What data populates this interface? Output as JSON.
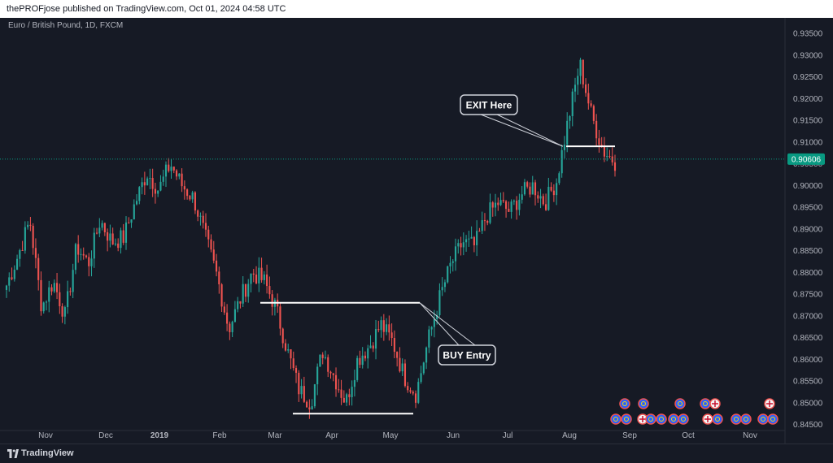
{
  "header": {
    "publisher_text": "thePROFjose published on TradingView.com, Oct 01, 2024 04:58 UTC"
  },
  "footer": {
    "brand": "TradingView"
  },
  "colors": {
    "background": "#161a25",
    "up": "#26a69a",
    "down": "#ef5350",
    "text": "#b2b5be",
    "price_badge": "#089981",
    "line": "#ffffff"
  },
  "chart_data": {
    "type": "candlestick",
    "symbol_label": "Euro / British Pound, 1D, FXCM",
    "last_price": "0.90606",
    "ylim": [
      0.8425,
      0.9365
    ],
    "y_ticks": [
      "0.93500",
      "0.93000",
      "0.92500",
      "0.92000",
      "0.91500",
      "0.91000",
      "0.90500",
      "0.90000",
      "0.89500",
      "0.89000",
      "0.88500",
      "0.88000",
      "0.87500",
      "0.87000",
      "0.86500",
      "0.86000",
      "0.85500",
      "0.85000",
      "0.84500"
    ],
    "x_ticks": [
      "Nov",
      "Dec",
      "2019",
      "Feb",
      "Mar",
      "Apr",
      "May",
      "Jun",
      "Jul",
      "Aug",
      "Sep",
      "Oct",
      "Nov"
    ],
    "anchor_points": [
      [
        "Oct",
        0.877
      ],
      [
        "Oct",
        0.884
      ],
      [
        "Oct",
        0.892
      ],
      [
        "Oct",
        0.872
      ],
      [
        "Nov",
        0.878
      ],
      [
        "Nov",
        0.87
      ],
      [
        "Nov",
        0.886
      ],
      [
        "Nov",
        0.882
      ],
      [
        "Nov",
        0.892
      ],
      [
        "Nov",
        0.887
      ],
      [
        "Dec",
        0.888
      ],
      [
        "Dec",
        0.896
      ],
      [
        "Dec",
        0.903
      ],
      [
        "Dec",
        0.899
      ],
      [
        "2019",
        0.905
      ],
      [
        "2019",
        0.9
      ],
      [
        "2019",
        0.897
      ],
      [
        "Jan",
        0.888
      ],
      [
        "Jan",
        0.879
      ],
      [
        "Jan",
        0.867
      ],
      [
        "Feb",
        0.874
      ],
      [
        "Feb",
        0.88
      ],
      [
        "Feb",
        0.878
      ],
      [
        "Feb",
        0.872
      ],
      [
        "Mar",
        0.862
      ],
      [
        "Mar",
        0.853
      ],
      [
        "Mar",
        0.85
      ],
      [
        "Mar",
        0.862
      ],
      [
        "Mar",
        0.856
      ],
      [
        "Apr",
        0.85
      ],
      [
        "Apr",
        0.86
      ],
      [
        "Apr",
        0.863
      ],
      [
        "Apr",
        0.868
      ],
      [
        "Apr",
        0.864
      ],
      [
        "May",
        0.856
      ],
      [
        "May",
        0.852
      ],
      [
        "May",
        0.864
      ],
      [
        "May",
        0.874
      ],
      [
        "Jun",
        0.882
      ],
      [
        "Jun",
        0.887
      ],
      [
        "Jun",
        0.886
      ],
      [
        "Jun",
        0.893
      ],
      [
        "Jun",
        0.896
      ],
      [
        "Jul",
        0.894
      ],
      [
        "Jul",
        0.898
      ],
      [
        "Jul",
        0.9
      ],
      [
        "Jul",
        0.896
      ],
      [
        "Aug",
        0.901
      ],
      [
        "Aug",
        0.915
      ],
      [
        "Aug",
        0.928
      ],
      [
        "Aug",
        0.916
      ],
      [
        "Aug",
        0.908
      ],
      [
        "Aug",
        0.9055
      ]
    ],
    "annotations": [
      {
        "label": "BUY Entry",
        "type": "callout"
      },
      {
        "label": "EXIT Here",
        "type": "callout"
      }
    ],
    "grid": false
  }
}
